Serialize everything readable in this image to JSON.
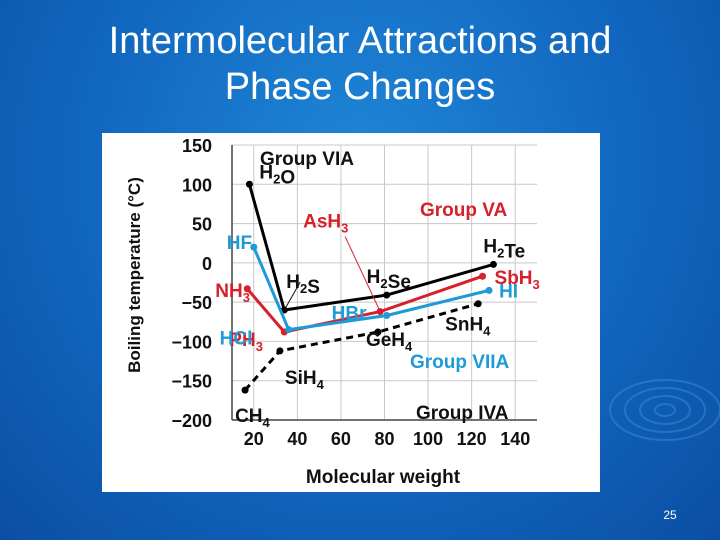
{
  "title_line1": "Intermolecular Attractions and",
  "title_line2": "Phase Changes",
  "page_number": "25",
  "chart_data": {
    "type": "line",
    "xlabel": "Molecular weight",
    "ylabel": "Boiling temperature (°C)",
    "x_ticks": [
      "20",
      "40",
      "60",
      "80",
      "100",
      "120",
      "140"
    ],
    "y_ticks": [
      "150",
      "100",
      "50",
      "0",
      "−50",
      "−100",
      "−150",
      "−200"
    ],
    "xlim": [
      10,
      150
    ],
    "ylim": [
      -200,
      150
    ],
    "grid": true,
    "series": [
      {
        "name": "Group VIA",
        "color": "#000000",
        "dashed": false,
        "points": [
          {
            "label": "H2O",
            "x": 18,
            "y": 100
          },
          {
            "label": "H2S",
            "x": 34,
            "y": -60
          },
          {
            "label": "H2Se",
            "x": 81,
            "y": -41
          },
          {
            "label": "H2Te",
            "x": 130,
            "y": -2
          }
        ]
      },
      {
        "name": "Group VA",
        "color": "#d6202a",
        "dashed": false,
        "points": [
          {
            "label": "NH3",
            "x": 17,
            "y": -33
          },
          {
            "label": "PH3",
            "x": 34,
            "y": -88
          },
          {
            "label": "AsH3",
            "x": 78,
            "y": -62
          },
          {
            "label": "SbH3",
            "x": 125,
            "y": -17
          }
        ]
      },
      {
        "name": "Group VIIA",
        "color": "#1e9ad6",
        "dashed": false,
        "points": [
          {
            "label": "HF",
            "x": 20,
            "y": 20
          },
          {
            "label": "HCl",
            "x": 36,
            "y": -85
          },
          {
            "label": "HBr",
            "x": 81,
            "y": -67
          },
          {
            "label": "HI",
            "x": 128,
            "y": -35
          }
        ]
      },
      {
        "name": "Group IVA",
        "color": "#000000",
        "dashed": true,
        "points": [
          {
            "label": "CH4",
            "x": 16,
            "y": -162
          },
          {
            "label": "SiH4",
            "x": 32,
            "y": -112
          },
          {
            "label": "GeH4",
            "x": 77,
            "y": -88
          },
          {
            "label": "SnH4",
            "x": 123,
            "y": -52
          }
        ]
      }
    ]
  }
}
